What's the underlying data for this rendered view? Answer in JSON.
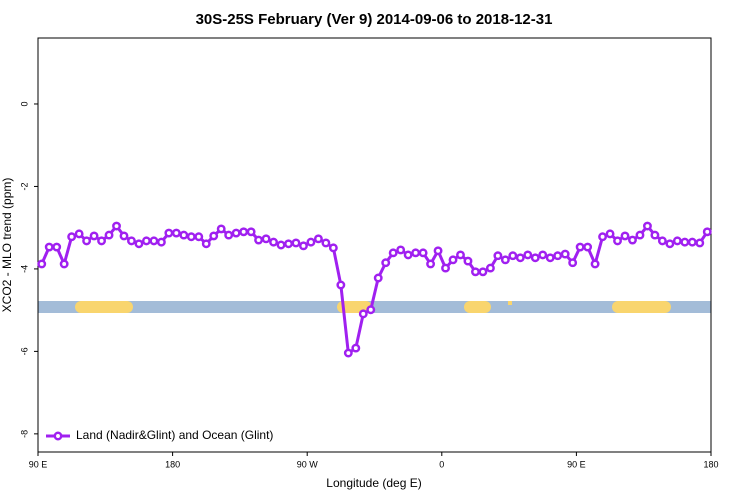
{
  "chart_data": {
    "type": "line",
    "title": "30S-25S February (Ver 9)   2014-09-06 to 2018-12-31",
    "xlabel": "Longitude (deg E)",
    "ylabel": "XCO2 - MLO trend (ppm)",
    "xlim": [
      90,
      540
    ],
    "ylim": [
      -8.44,
      1.6
    ],
    "xticks": [
      {
        "value": 90,
        "label": "90 E"
      },
      180,
      {
        "value": 270,
        "label": "90 W"
      },
      {
        "value": 360,
        "label": "0"
      },
      {
        "value": 450,
        "label": "90 E"
      },
      {
        "value": 540,
        "label": "180"
      }
    ],
    "yticks": [
      0,
      -2,
      -4,
      -6,
      -8
    ],
    "legend_position": "bottom-left",
    "x": [
      92.5,
      97.5,
      102.5,
      107.5,
      112.5,
      117.5,
      122.5,
      127.5,
      132.5,
      137.5,
      142.5,
      147.5,
      152.5,
      157.5,
      162.5,
      167.5,
      172.5,
      177.5,
      182.5,
      187.5,
      192.5,
      197.5,
      202.5,
      207.5,
      212.5,
      217.5,
      222.5,
      227.5,
      232.5,
      237.5,
      242.5,
      247.5,
      252.5,
      257.5,
      262.5,
      267.5,
      272.5,
      277.5,
      282.5,
      287.5,
      292.5,
      297.5,
      302.5,
      307.5,
      312.5,
      317.5,
      322.5,
      327.5,
      332.5,
      337.5,
      342.5,
      347.5,
      352.5,
      357.5,
      362.5,
      367.5,
      372.5,
      377.5,
      382.5,
      387.5,
      392.5,
      397.5,
      402.5,
      407.5,
      412.5,
      417.5,
      422.5,
      427.5,
      432.5,
      437.5,
      442.5,
      447.5,
      452.5,
      457.5,
      462.5,
      467.5,
      472.5,
      477.5,
      482.5,
      487.5,
      492.5,
      497.5,
      502.5,
      507.5,
      512.5,
      517.5,
      522.5,
      527.5,
      532.5,
      537.5
    ],
    "series": [
      {
        "name": "Land (Nadir&Glint) and Ocean (Glint)",
        "color": "#a020f0",
        "values": [
          -3.88,
          -3.47,
          -3.47,
          -3.88,
          -3.22,
          -3.15,
          -3.32,
          -3.2,
          -3.32,
          -3.18,
          -2.96,
          -3.2,
          -3.32,
          -3.39,
          -3.32,
          -3.32,
          -3.35,
          -3.13,
          -3.13,
          -3.18,
          -3.22,
          -3.22,
          -3.39,
          -3.2,
          -3.03,
          -3.18,
          -3.13,
          -3.1,
          -3.1,
          -3.3,
          -3.27,
          -3.35,
          -3.42,
          -3.39,
          -3.37,
          -3.44,
          -3.35,
          -3.27,
          -3.37,
          -3.49,
          -4.39,
          -6.04,
          -5.92,
          -5.09,
          -4.99,
          -4.22,
          -3.85,
          -3.61,
          -3.54,
          -3.66,
          -3.61,
          -3.61,
          -3.88,
          -3.56,
          -3.98,
          -3.78,
          -3.66,
          -3.81,
          -4.07,
          -4.07,
          -3.98,
          -3.68,
          -3.78,
          -3.68,
          -3.73,
          -3.66,
          -3.73,
          -3.66,
          -3.73,
          -3.68,
          -3.64,
          -3.85,
          -3.47,
          -3.47,
          -3.88,
          -3.22,
          -3.15,
          -3.32,
          -3.2,
          -3.3,
          -3.18,
          -2.96,
          -3.18,
          -3.32,
          -3.39,
          -3.32,
          -3.35,
          -3.35,
          -3.37,
          -3.1
        ]
      }
    ]
  }
}
